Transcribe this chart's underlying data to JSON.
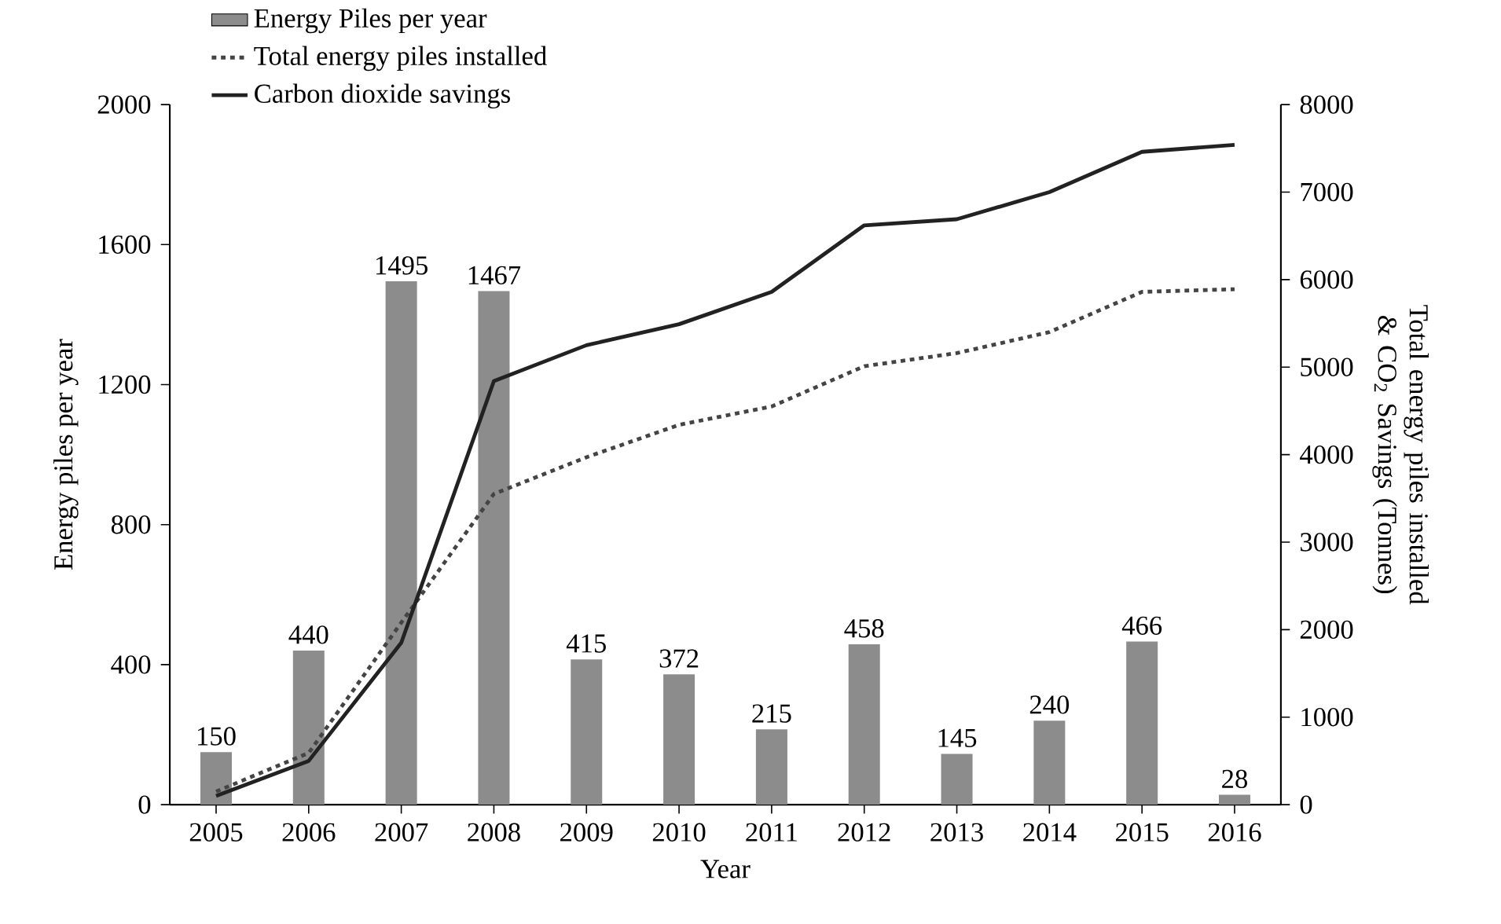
{
  "chart_data": {
    "type": "bar",
    "xlabel": "Year",
    "ylabel": "Energy piles per year",
    "y2label": "Total energy piles installed  &  CO$_{2}$ Savings (Tonnes)",
    "categories": [
      "2005",
      "2006",
      "2007",
      "2008",
      "2009",
      "2010",
      "2011",
      "2012",
      "2013",
      "2014",
      "2015",
      "2016"
    ],
    "series": [
      {
        "name": "Energy Piles per year",
        "color": "#8c8c8c",
        "values": [
          150,
          440,
          1495,
          1467,
          415,
          372,
          215,
          458,
          145,
          240,
          466,
          28
        ],
        "value_labels": [
          "150",
          "440",
          "1495",
          "1467",
          "415",
          "372",
          "215",
          "458",
          "145",
          "240",
          "466",
          "28"
        ]
      },
      {
        "name": "Total energy piles installed",
        "type": "line",
        "axis": "y2",
        "line_style": "dotted",
        "color": "#444444",
        "values": [
          150,
          590,
          2080,
          3550,
          3970,
          4340,
          4550,
          5010,
          5160,
          5400,
          5860,
          5890
        ]
      },
      {
        "name": "Carbon dioxide savings",
        "type": "line",
        "axis": "y2",
        "line_style": "solid",
        "color": "#222222",
        "values": [
          100,
          500,
          1850,
          4840,
          5250,
          5490,
          5860,
          6620,
          6690,
          7000,
          7460,
          7540
        ]
      }
    ],
    "legend": "top left",
    "grid": false,
    "ylim": [
      0,
      2000
    ],
    "yticks": [
      0,
      400,
      800,
      1200,
      1600,
      2000
    ],
    "y2lim": [
      0,
      8000
    ],
    "y2ticks": [
      0,
      1000,
      2000,
      3000,
      4000,
      5000,
      6000,
      7000,
      8000
    ]
  }
}
